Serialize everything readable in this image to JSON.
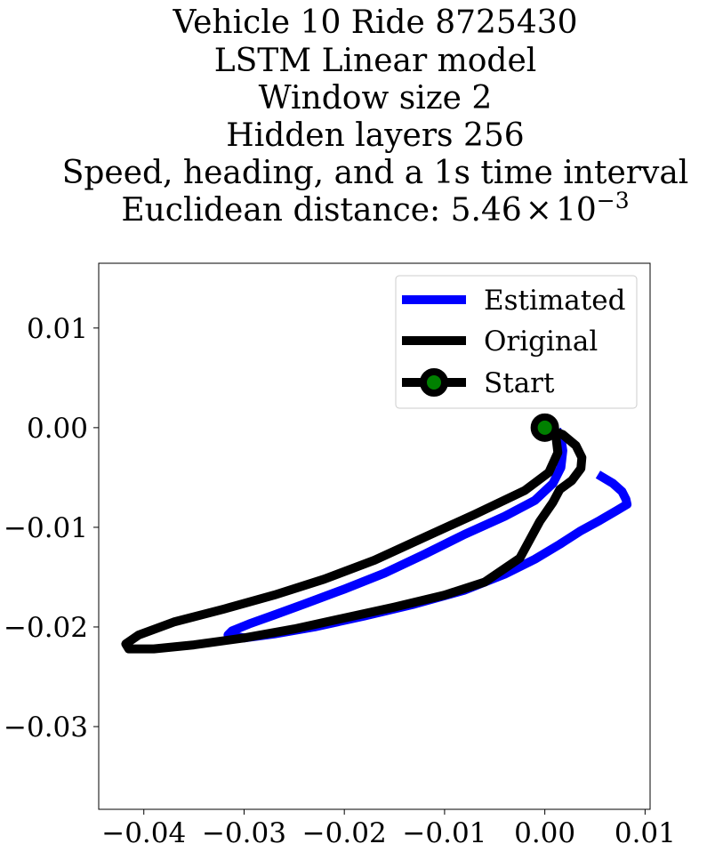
{
  "chart_data": {
    "type": "line",
    "title_lines": [
      "Vehicle 10 Ride 8725430",
      "LSTM Linear model",
      "Window size 2",
      "Hidden layers 256",
      "Speed, heading, and a 1s time interval"
    ],
    "title_distance": {
      "prefix": "Euclidean distance: ",
      "mantissa": "5.46",
      "times": "×",
      "base": "10",
      "exponent": "−3"
    },
    "xlabel": "",
    "ylabel": "",
    "xlim": [
      -0.0445,
      0.0105
    ],
    "ylim": [
      -0.0383,
      0.0165
    ],
    "xticks": [
      {
        "value": -0.04,
        "label": "−0.04"
      },
      {
        "value": -0.03,
        "label": "−0.03"
      },
      {
        "value": -0.02,
        "label": "−0.02"
      },
      {
        "value": -0.01,
        "label": "−0.01"
      },
      {
        "value": 0.0,
        "label": "0.00"
      },
      {
        "value": 0.01,
        "label": "0.01"
      }
    ],
    "yticks": [
      {
        "value": 0.01,
        "label": "0.01"
      },
      {
        "value": 0.0,
        "label": "0.00"
      },
      {
        "value": -0.01,
        "label": "−0.01"
      },
      {
        "value": -0.02,
        "label": "−0.02"
      },
      {
        "value": -0.03,
        "label": "−0.03"
      }
    ],
    "grid": false,
    "legend_position": "top-right",
    "series": [
      {
        "name": "Estimated",
        "color": "#0000ff",
        "x": [
          0.0053,
          0.0068,
          0.0077,
          0.0081,
          0.0082,
          0.0072,
          0.0055,
          0.0035,
          0.0015,
          -0.001,
          -0.004,
          -0.008,
          -0.013,
          -0.018,
          -0.023,
          -0.027,
          -0.03,
          -0.0316,
          -0.0312,
          -0.0295,
          -0.027,
          -0.024,
          -0.02,
          -0.016,
          -0.012,
          -0.008,
          -0.004,
          -0.001,
          0.0008,
          0.0016,
          0.0018,
          0.0016,
          0.0012
        ],
        "y": [
          -0.0047,
          -0.0056,
          -0.0064,
          -0.0072,
          -0.0077,
          -0.0083,
          -0.0093,
          -0.0104,
          -0.0117,
          -0.0132,
          -0.0147,
          -0.0163,
          -0.0177,
          -0.0189,
          -0.02,
          -0.0207,
          -0.0211,
          -0.0208,
          -0.0204,
          -0.0197,
          -0.0188,
          -0.0177,
          -0.0162,
          -0.0146,
          -0.0127,
          -0.0107,
          -0.0089,
          -0.0073,
          -0.0056,
          -0.004,
          -0.0023,
          -0.001,
          -0.0002
        ]
      },
      {
        "name": "Original",
        "color": "#000000",
        "x": [
          0.0,
          0.0018,
          0.0031,
          0.0037,
          0.0036,
          0.0027,
          0.0015,
          0.0008,
          -0.0005,
          -0.0025,
          -0.006,
          -0.01,
          -0.015,
          -0.02,
          -0.025,
          -0.03,
          -0.035,
          -0.039,
          -0.0415,
          -0.0418,
          -0.0405,
          -0.037,
          -0.032,
          -0.027,
          -0.022,
          -0.017,
          -0.012,
          -0.007,
          -0.002,
          0.0004,
          0.0013,
          0.0011,
          0.0
        ],
        "y": [
          0.0,
          -0.0007,
          -0.0018,
          -0.003,
          -0.0041,
          -0.0053,
          -0.0062,
          -0.0075,
          -0.0094,
          -0.0131,
          -0.0155,
          -0.0168,
          -0.018,
          -0.0191,
          -0.0202,
          -0.0211,
          -0.0218,
          -0.0222,
          -0.0222,
          -0.0217,
          -0.0208,
          -0.0195,
          -0.0182,
          -0.0168,
          -0.0152,
          -0.0133,
          -0.011,
          -0.0087,
          -0.0063,
          -0.0045,
          -0.0025,
          -0.0008,
          0.0
        ]
      }
    ],
    "start_point": {
      "name": "Start",
      "x": 0.0,
      "y": 0.0,
      "edge_color": "#000000",
      "face_color": "#008000"
    }
  }
}
